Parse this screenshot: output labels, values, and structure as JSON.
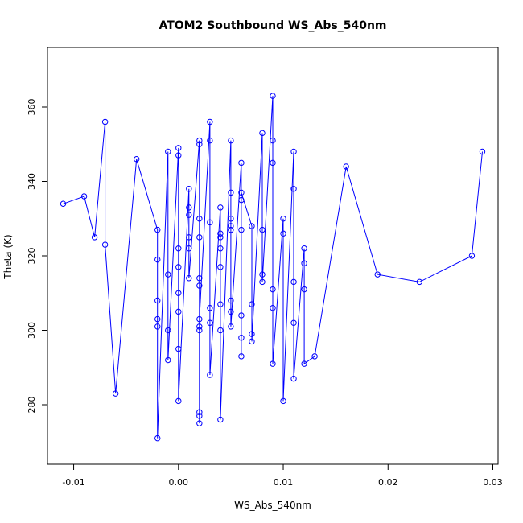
{
  "chart_data": {
    "type": "line",
    "title": "ATOM2 Southbound WS_Abs_540nm",
    "xlabel": "WS_Abs_540nm",
    "ylabel": "Theta (K)",
    "xlim": [
      -0.0125,
      0.0305
    ],
    "ylim": [
      264,
      376
    ],
    "x_ticks": [
      -0.01,
      0.0,
      0.01,
      0.02,
      0.03
    ],
    "x_tick_labels": [
      "-0.01",
      "0.00",
      "0.01",
      "0.02",
      "0.03"
    ],
    "y_ticks": [
      280,
      300,
      320,
      340,
      360
    ],
    "y_tick_labels": [
      "280",
      "300",
      "320",
      "340",
      "360"
    ],
    "grid": false,
    "legend": "none",
    "series": [
      {
        "color": "#0000ff",
        "marker": "open-circle",
        "x": [
          -0.011,
          -0.009,
          -0.008,
          -0.007,
          -0.007,
          -0.006,
          -0.004,
          -0.002,
          -0.002,
          -0.002,
          -0.002,
          -0.002,
          -0.002,
          -0.001,
          -0.001,
          -0.001,
          -0.001,
          0.0,
          0.0,
          0.0,
          0.0,
          0.0,
          0.0,
          0.0,
          0.0,
          0.001,
          0.001,
          0.001,
          0.001,
          0.001,
          0.001,
          0.002,
          0.002,
          0.002,
          0.002,
          0.002,
          0.002,
          0.002,
          0.002,
          0.002,
          0.002,
          0.002,
          0.002,
          0.003,
          0.003,
          0.003,
          0.003,
          0.003,
          0.003,
          0.004,
          0.004,
          0.004,
          0.004,
          0.004,
          0.004,
          0.004,
          0.004,
          0.005,
          0.005,
          0.005,
          0.005,
          0.005,
          0.005,
          0.005,
          0.005,
          0.006,
          0.006,
          0.006,
          0.006,
          0.006,
          0.006,
          0.006,
          0.007,
          0.007,
          0.007,
          0.007,
          0.008,
          0.008,
          0.008,
          0.008,
          0.009,
          0.009,
          0.009,
          0.009,
          0.009,
          0.009,
          0.01,
          0.01,
          0.01,
          0.011,
          0.011,
          0.011,
          0.011,
          0.011,
          0.012,
          0.012,
          0.012,
          0.012,
          0.013,
          0.016,
          0.019,
          0.023,
          0.028,
          0.029
        ],
        "y": [
          334,
          336,
          325,
          356,
          323,
          283,
          346,
          327,
          319,
          308,
          303,
          301,
          271,
          348,
          315,
          300,
          292,
          349,
          347,
          322,
          317,
          310,
          305,
          295,
          281,
          338,
          333,
          331,
          325,
          322,
          314,
          351,
          350,
          330,
          325,
          301,
          300,
          278,
          277,
          275,
          314,
          312,
          303,
          356,
          351,
          329,
          306,
          302,
          288,
          333,
          326,
          325,
          322,
          317,
          307,
          300,
          276,
          351,
          337,
          330,
          328,
          327,
          308,
          305,
          301,
          345,
          335,
          327,
          304,
          298,
          293,
          337,
          328,
          307,
          299,
          297,
          353,
          327,
          315,
          313,
          363,
          351,
          345,
          311,
          306,
          291,
          330,
          326,
          281,
          348,
          338,
          313,
          302,
          287,
          322,
          318,
          311,
          291,
          293,
          344,
          315,
          313,
          320,
          348
        ]
      }
    ]
  }
}
